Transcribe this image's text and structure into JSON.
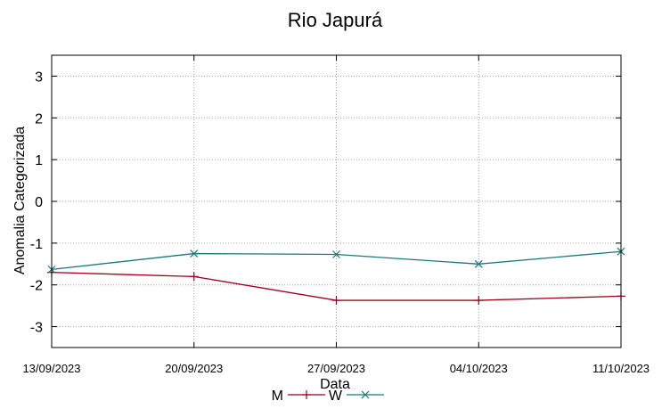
{
  "chart_data": {
    "type": "line",
    "title": "Rio Japurá",
    "xlabel": "Data",
    "ylabel": "Anomalia Categorizada",
    "categories": [
      "13/09/2023",
      "20/09/2023",
      "27/09/2023",
      "04/10/2023",
      "11/10/2023"
    ],
    "ylim": [
      -3.5,
      3.5
    ],
    "yticks": [
      -3,
      -2,
      -1,
      0,
      1,
      2,
      3
    ],
    "grid": true,
    "legend_position": "bottom-center",
    "series": [
      {
        "name": "M",
        "color": "#a0001a",
        "marker": "+",
        "values": [
          -1.7,
          -1.8,
          -2.37,
          -2.37,
          -2.27
        ]
      },
      {
        "name": "W",
        "color": "#1a7a7a",
        "marker": "x",
        "values": [
          -1.63,
          -1.25,
          -1.27,
          -1.5,
          -1.2
        ]
      }
    ]
  }
}
